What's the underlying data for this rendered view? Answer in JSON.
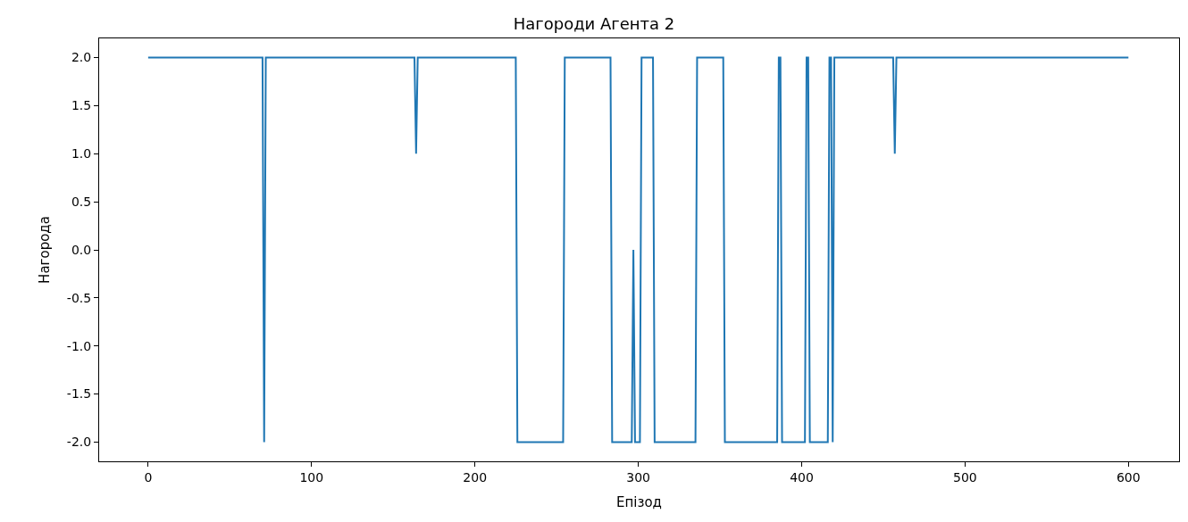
{
  "chart_data": {
    "type": "line",
    "title": "Нагороди Агента 2",
    "xlabel": "Епізод",
    "ylabel": "Нагорода",
    "x": [
      0,
      70,
      71,
      72,
      163,
      164,
      165,
      225,
      226,
      254,
      255,
      283,
      284,
      296,
      297,
      298,
      301,
      302,
      309,
      310,
      335,
      336,
      352,
      353,
      385,
      386,
      387,
      388,
      402,
      403,
      404,
      405,
      416,
      417,
      418,
      419,
      420,
      456,
      457,
      458,
      600
    ],
    "series": [
      {
        "color": "#1f77b4",
        "values": [
          2,
          2,
          -2,
          2,
          2,
          1,
          2,
          2,
          -2,
          -2,
          2,
          2,
          -2,
          -2,
          0,
          -2,
          -2,
          2,
          2,
          -2,
          -2,
          2,
          2,
          -2,
          -2,
          2,
          2,
          -2,
          -2,
          2,
          2,
          -2,
          -2,
          2,
          2,
          -2,
          2,
          2,
          1,
          2,
          2
        ]
      }
    ],
    "xlim": [
      -30,
      631
    ],
    "xticks": [
      0,
      100,
      200,
      300,
      400,
      500,
      600
    ],
    "ylim": [
      -2.2,
      2.2
    ],
    "yticks": [
      {
        "value": -2,
        "label": "-2.0"
      },
      {
        "value": -1.5,
        "label": "-1.5"
      },
      {
        "value": -1,
        "label": "-1.0"
      },
      {
        "value": -0.5,
        "label": "-0.5"
      },
      {
        "value": 0,
        "label": "0.0"
      },
      {
        "value": 0.5,
        "label": "0.5"
      },
      {
        "value": 1,
        "label": "1.0"
      },
      {
        "value": 1.5,
        "label": "1.5"
      },
      {
        "value": 2,
        "label": "2.0"
      }
    ],
    "line_style": "solid"
  }
}
